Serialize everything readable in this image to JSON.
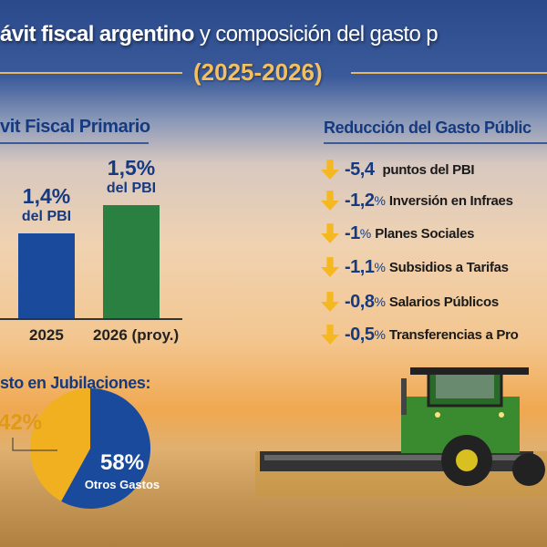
{
  "title": {
    "bold": "ávit fiscal argentino",
    "light": "y composición del gasto p",
    "subtitle": "(2025-2026)"
  },
  "left_section": {
    "heading": "vit Fiscal Primario"
  },
  "right_section": {
    "heading": "Reducción del Gasto Públic",
    "items": [
      {
        "value": "-5,4",
        "pct": "",
        "label": "puntos del PBI"
      },
      {
        "value": "-1,2",
        "pct": "%",
        "label": "Inversión en Infraes"
      },
      {
        "value": "-1",
        "pct": "%",
        "label": "Planes Sociales"
      },
      {
        "value": "-1,1",
        "pct": "%",
        "label": "Subsidios a Tarifas"
      },
      {
        "value": "-0,8",
        "pct": "%",
        "label": "Salarios Públicos"
      },
      {
        "value": "-0,5",
        "pct": "%",
        "label": "Transferencias a Pro"
      }
    ],
    "icon": "arrow-down-icon",
    "arrow_color": "#f5b820"
  },
  "pie_section": {
    "heading": "sto en Jubilaciones:"
  },
  "chart_data": [
    {
      "type": "bar",
      "categories": [
        "2025",
        "2026 (proy.)"
      ],
      "values": [
        1.4,
        1.5
      ],
      "value_labels": [
        "1,4%",
        "1,5%"
      ],
      "unit_label": "del PBI",
      "colors": [
        "#1a4a9c",
        "#2a8040"
      ]
    },
    {
      "type": "pie",
      "slices": [
        {
          "label": "",
          "value": 42,
          "display": "42%",
          "color": "#f0b020"
        },
        {
          "label": "Otros Gastos",
          "value": 58,
          "display": "58%",
          "color": "#1a4a9c"
        }
      ]
    }
  ]
}
